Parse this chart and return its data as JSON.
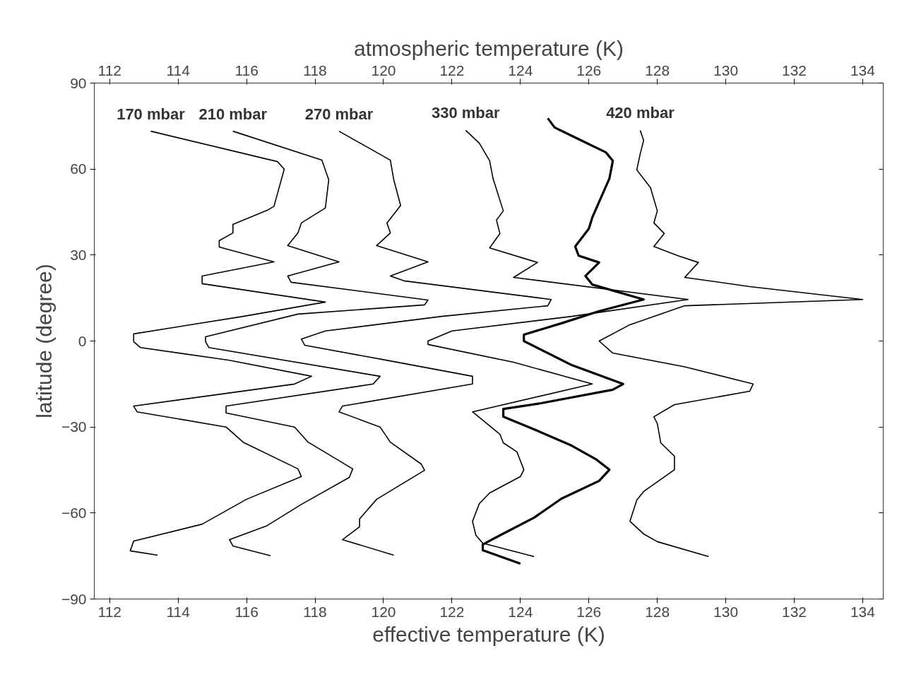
{
  "chart_data": {
    "type": "line",
    "xlabel": "effective temperature (K)",
    "x2label": "atmospheric temperature (K)",
    "ylabel": "latitude (degree)",
    "xlim": [
      111.55,
      134.6
    ],
    "xticks": [
      112,
      114,
      116,
      118,
      120,
      122,
      124,
      126,
      128,
      130,
      132,
      134
    ],
    "x2lim": [
      111.55,
      134.6
    ],
    "x2ticks": [
      112,
      114,
      116,
      118,
      120,
      122,
      124,
      126,
      128,
      130,
      132,
      134
    ],
    "ylim": [
      -90,
      90
    ],
    "yticks": [
      -90,
      -60,
      -30,
      0,
      30,
      60,
      90
    ],
    "grid": false,
    "series": [
      {
        "name": "170 mbar",
        "color": "#000000",
        "x": [
          113.2,
          116.9,
          117.1,
          116.8,
          116.6,
          115.6,
          115.6,
          115.2,
          115.2,
          116.8,
          114.7,
          114.7,
          118.3,
          115.9,
          112.7,
          112.7,
          112.9,
          115.5,
          117.9,
          117.4,
          112.7,
          112.8,
          115.4,
          115.9,
          117.5,
          117.6,
          116.0,
          114.7,
          112.7,
          112.6,
          113.4
        ],
        "values": [
          73.2,
          62.6,
          60,
          47,
          45.6,
          40.7,
          37.7,
          35,
          32.8,
          27.6,
          22.7,
          20,
          13.6,
          8.6,
          2.5,
          -0.2,
          -2.3,
          -6.7,
          -12.3,
          -15,
          -22.7,
          -24.7,
          -30,
          -35.3,
          -44.6,
          -47.3,
          -55.2,
          -63.9,
          -69.8,
          -73.2,
          -74.7
        ]
      },
      {
        "name": "210 mbar",
        "color": "#000000",
        "x": [
          115.6,
          118.2,
          118.4,
          118.3,
          117.6,
          117.5,
          117.2,
          118.7,
          117.2,
          117.3,
          121.3,
          121.2,
          117.5,
          114.8,
          114.8,
          114.9,
          119.9,
          119.7,
          115.4,
          115.4,
          117.4,
          117.8,
          119.1,
          119.0,
          117.6,
          116.6,
          115.5,
          115.6,
          116.7
        ],
        "values": [
          73.2,
          63.1,
          56.2,
          46.4,
          41.2,
          37.7,
          33.3,
          27.6,
          22.7,
          20.5,
          14.3,
          12.6,
          9.4,
          1.5,
          -0.2,
          -2.3,
          -12.3,
          -15,
          -22.7,
          -25.1,
          -30,
          -35.3,
          -44.6,
          -47.6,
          -57,
          -64.4,
          -69.3,
          -71.5,
          -74.9
        ]
      },
      {
        "name": "270 mbar",
        "color": "#000000",
        "x": [
          118.7,
          120.2,
          120.3,
          120.5,
          120.1,
          120.2,
          119.8,
          121.3,
          120.2,
          120.6,
          124.9,
          124.8,
          121.7,
          118.3,
          117.6,
          117.7,
          120.0,
          122.6,
          122.6,
          118.8,
          118.7,
          119.9,
          120.2,
          121.1,
          121.2,
          119.8,
          119.3,
          119.3,
          118.8,
          120.3
        ],
        "values": [
          73.2,
          63.1,
          56.2,
          47.3,
          41.2,
          37.7,
          33.3,
          27.6,
          22.7,
          21,
          14.5,
          12.3,
          8.6,
          3.5,
          0.7,
          -1.5,
          -6.5,
          -12.3,
          -15,
          -22.7,
          -24.7,
          -30,
          -35.3,
          -42.9,
          -45.1,
          -55.2,
          -62.1,
          -64.8,
          -69.3,
          -74.7
        ]
      },
      {
        "name": "330 mbar",
        "color": "#000000",
        "x": [
          122.4,
          122.8,
          123.1,
          123.2,
          123.5,
          123.3,
          123.4,
          123.1,
          124.5,
          123.8,
          128.9,
          125.5,
          122.0,
          121.3,
          121.3,
          123.8,
          126.1,
          122.6,
          123.4,
          123.5,
          123.9,
          124.1,
          124.0,
          123.1,
          122.8,
          122.6,
          122.7,
          122.9,
          124.4
        ],
        "values": [
          73.5,
          69,
          62.9,
          56.7,
          45.4,
          42.2,
          37.5,
          32.5,
          27.4,
          22.2,
          14.5,
          8.6,
          3.5,
          0,
          -1.2,
          -7.4,
          -15,
          -24.7,
          -32.5,
          -35.5,
          -38.7,
          -44.9,
          -47.3,
          -53,
          -56.7,
          -62.9,
          -67.8,
          -70.5,
          -75.2
        ]
      },
      {
        "color": "#000000",
        "x": [
          124.8,
          125.0,
          125.6,
          126.5,
          126.7,
          126.6,
          126.1,
          126.0,
          125.6,
          125.7,
          126.3,
          125.9,
          126.1,
          127.6,
          126.3,
          125.2,
          124.1,
          124.1,
          125.5,
          127.0,
          126.7,
          124.6,
          123.5,
          123.5,
          124.4,
          125.5,
          126.2,
          126.6,
          126.3,
          125.2,
          124.4,
          123.4,
          122.9,
          122.9,
          124.0
        ],
        "values": [
          77.7,
          74.5,
          71,
          65.8,
          62.9,
          56.7,
          43.1,
          39.2,
          33,
          29.8,
          27.4,
          22.7,
          19.7,
          14.5,
          10.4,
          6.2,
          2.2,
          0,
          -8.4,
          -15,
          -17,
          -21.7,
          -23.7,
          -26.4,
          -30.8,
          -36.5,
          -41.2,
          -44.9,
          -48.8,
          -55,
          -61.6,
          -67.8,
          -71,
          -73,
          -77.7
        ]
      },
      {
        "name": "420 mbar",
        "color": "#000000",
        "x": [
          127.5,
          127.6,
          127.5,
          127.4,
          127.8,
          128.0,
          127.9,
          128.2,
          127.9,
          128.6,
          129.2,
          128.8,
          130.7,
          134.0,
          128.8,
          127.2,
          126.3,
          126.7,
          128.8,
          130.8,
          130.7,
          128.5,
          127.9,
          128.0,
          128.1,
          128.5,
          128.5,
          127.6,
          127.4,
          127.2,
          127.6,
          128.0,
          129.5
        ],
        "values": [
          73.5,
          70,
          65.3,
          59.7,
          53.5,
          45.4,
          41.2,
          37.5,
          33,
          29.8,
          27.4,
          22.2,
          19,
          14.5,
          12.3,
          5.7,
          0,
          -4.2,
          -9,
          -15,
          -17.5,
          -22.2,
          -26.4,
          -28.8,
          -35.5,
          -40.2,
          -44.9,
          -52.5,
          -55.5,
          -62.9,
          -67.3,
          -70,
          -75.2
        ]
      }
    ]
  }
}
